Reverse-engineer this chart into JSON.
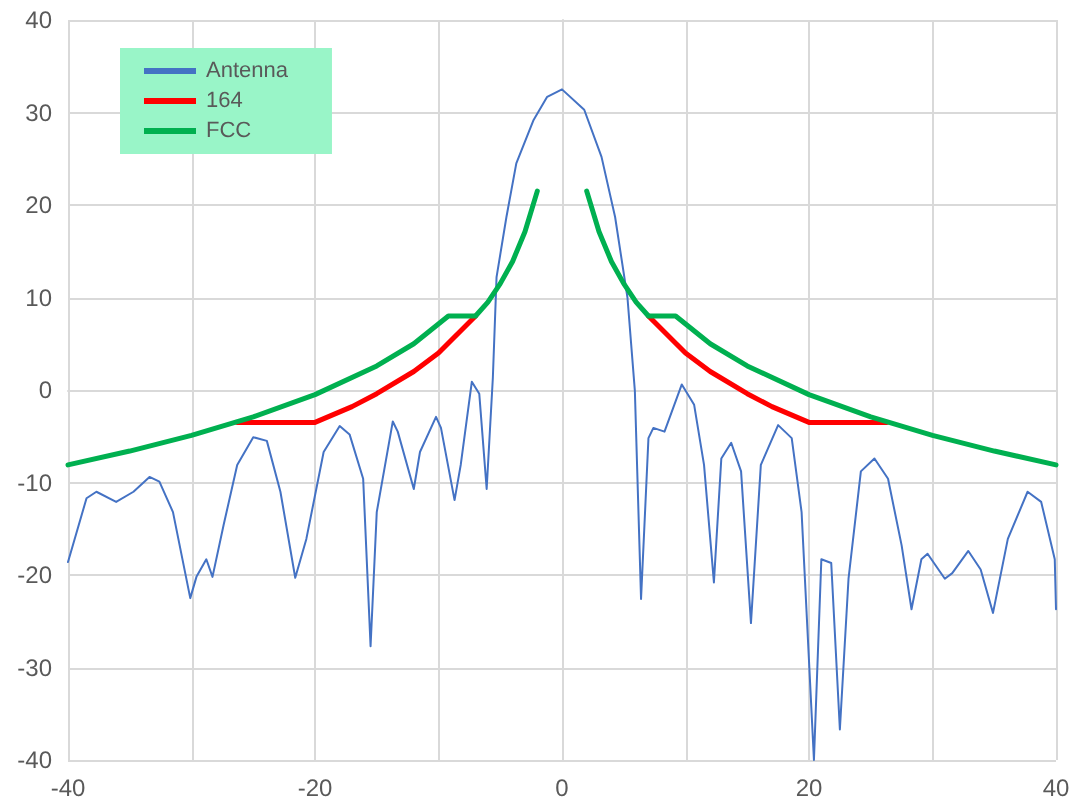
{
  "chart_data": {
    "type": "line",
    "series": [
      {
        "name": "Antenna",
        "color": "#4472c4",
        "x": [
          -40,
          -38.5,
          -37.7,
          -36.1,
          -34.7,
          -33.4,
          -32.6,
          -31.5,
          -30.1,
          -29.6,
          -28.8,
          -28.3,
          -27.4,
          -26.3,
          -25.0,
          -23.9,
          -22.8,
          -21.6,
          -20.7,
          -19.3,
          -18.0,
          -17.2,
          -16.1,
          -15.5,
          -15.0,
          -13.7,
          -13.3,
          -12.0,
          -11.5,
          -10.2,
          -9.8,
          -8.7,
          -8.2,
          -7.3,
          -6.7,
          -6.1,
          -5.6,
          -5.3,
          -4.5,
          -3.7,
          -2.3,
          -1.2,
          0,
          1.8,
          3.2,
          4.3,
          5.3,
          5.9,
          6.4,
          7.0,
          7.4,
          8.3,
          9.7,
          10.7,
          11.5,
          12.3,
          12.9,
          13.7,
          14.5,
          15.3,
          16.1,
          17.5,
          18.6,
          19.4,
          20.4,
          21.0,
          21.8,
          22.5,
          23.2,
          24.2,
          25.3,
          26.4,
          27.5,
          28.3,
          29.1,
          29.6,
          31.0,
          31.6,
          32.9,
          33.9,
          34.9,
          36.1,
          37.7,
          38.8,
          39.9,
          40
        ],
        "values": [
          -18.6,
          -11.7,
          -11.0,
          -12.1,
          -11.0,
          -9.4,
          -9.9,
          -13.2,
          -22.5,
          -20.2,
          -18.3,
          -20.2,
          -14.6,
          -8.1,
          -5.1,
          -5.5,
          -11.0,
          -20.3,
          -16.1,
          -6.7,
          -3.9,
          -4.8,
          -9.6,
          -27.7,
          -13.2,
          -3.4,
          -4.5,
          -10.7,
          -6.7,
          -2.9,
          -4.1,
          -11.9,
          -8.1,
          0.9,
          -0.4,
          -10.7,
          1.3,
          12.2,
          18.7,
          24.5,
          29.2,
          31.7,
          32.5,
          30.3,
          25.2,
          18.7,
          10.0,
          -0.1,
          -22.6,
          -5.2,
          -4.1,
          -4.5,
          0.6,
          -1.6,
          -8.1,
          -20.8,
          -7.4,
          -5.7,
          -8.8,
          -25.2,
          -8.1,
          -3.8,
          -5.2,
          -13.2,
          -40,
          -18.3,
          -18.7,
          -36.7,
          -20.4,
          -8.8,
          -7.4,
          -9.6,
          -16.8,
          -23.7,
          -18.3,
          -17.7,
          -20.4,
          -19.8,
          -17.4,
          -19.4,
          -24.1,
          -16.1,
          -11.0,
          -12.1,
          -18.3,
          -23.7
        ]
      },
      {
        "name": "164",
        "color": "#ff0000",
        "x": [
          -26.3,
          -20,
          -17,
          -15,
          -12,
          -10,
          -7,
          0,
          7,
          10,
          12,
          15,
          17,
          20,
          26.3
        ],
        "values": [
          -3.5,
          -3.5,
          -1.8,
          -0.4,
          2.0,
          4.0,
          8,
          null,
          8,
          4.0,
          2.0,
          -0.4,
          -1.8,
          -3.5,
          -3.5
        ]
      },
      {
        "name": "FCC",
        "color": "#00b050",
        "x": [
          -40,
          -35,
          -30,
          -25,
          -20,
          -15,
          -12,
          -9.2,
          -7,
          -6,
          -5,
          -4,
          -3,
          -2,
          0,
          2,
          3,
          4,
          5,
          6,
          7,
          9.2,
          12,
          15,
          20,
          25,
          30,
          35,
          40
        ],
        "values": [
          -8.1,
          -6.6,
          -4.9,
          -2.9,
          -0.5,
          2.6,
          5.0,
          8,
          8,
          9.5,
          11.5,
          13.9,
          17.1,
          21.5,
          null,
          21.5,
          17.1,
          13.9,
          11.5,
          9.5,
          8,
          8,
          5.0,
          2.6,
          -0.5,
          -2.9,
          -4.9,
          -6.6,
          -8.1
        ]
      }
    ],
    "xlim": [
      -40,
      40
    ],
    "xticks": [
      -40,
      {
        "value": -30,
        "label": null
      },
      -20,
      {
        "value": -10,
        "label": null
      },
      0,
      {
        "value": 10,
        "label": null
      },
      20,
      {
        "value": 30,
        "label": null
      },
      40
    ],
    "ylim": [
      -40,
      40
    ],
    "yticks": [
      -40,
      -30,
      -20,
      -10,
      0,
      10,
      20,
      30,
      40
    ],
    "grid": true,
    "legend": "top left",
    "marker": "none",
    "line_style": "solid"
  }
}
